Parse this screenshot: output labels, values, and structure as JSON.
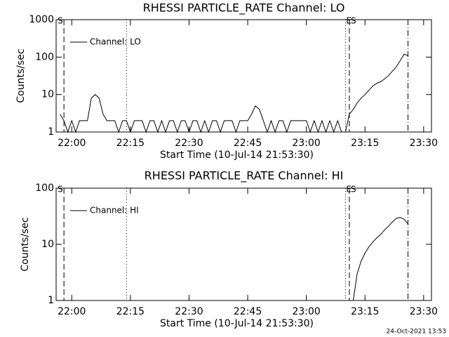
{
  "chart_data": [
    {
      "type": "line",
      "title": "RHESSI PARTICLE_RATE Channel: LO",
      "xlabel": "Start Time (10-Jul-14 21:53:30)",
      "ylabel": "Counts/sec",
      "log_y": true,
      "legend": "upper left",
      "xlim": [
        "21:56",
        "23:32"
      ],
      "xticks": [
        "22:00",
        "22:15",
        "22:30",
        "22:45",
        "23:00",
        "23:15",
        "23:30"
      ],
      "ylim": [
        1,
        1000
      ],
      "yticks": [
        1,
        10,
        100,
        1000
      ],
      "x": [
        "21:57",
        "21:58",
        "21:59",
        "22:00",
        "22:01",
        "22:02",
        "22:03",
        "22:04",
        "22:05",
        "22:06",
        "22:07",
        "22:08",
        "22:09",
        "22:10",
        "22:11",
        "22:12",
        "22:13",
        "22:14",
        "22:15",
        "22:16",
        "22:17",
        "22:18",
        "22:19",
        "22:20",
        "22:21",
        "22:22",
        "22:23",
        "22:24",
        "22:25",
        "22:26",
        "22:27",
        "22:28",
        "22:29",
        "22:30",
        "22:31",
        "22:32",
        "22:33",
        "22:34",
        "22:35",
        "22:36",
        "22:37",
        "22:38",
        "22:39",
        "22:40",
        "22:41",
        "22:42",
        "22:43",
        "22:44",
        "22:45",
        "22:46",
        "22:47",
        "22:48",
        "22:49",
        "22:50",
        "22:51",
        "22:52",
        "22:53",
        "22:54",
        "22:55",
        "22:56",
        "22:57",
        "22:58",
        "22:59",
        "23:00",
        "23:01",
        "23:02",
        "23:03",
        "23:04",
        "23:05",
        "23:06",
        "23:07",
        "23:08",
        "23:09",
        "23:10",
        "23:11",
        "23:12",
        "23:13",
        "23:14",
        "23:15",
        "23:16",
        "23:17",
        "23:18",
        "23:19",
        "23:20",
        "23:21",
        "23:22",
        "23:23",
        "23:24",
        "23:25",
        "23:26"
      ],
      "series": [
        {
          "name": "Channel: LO",
          "color": "#000000",
          "values": [
            3,
            2,
            1,
            2,
            1,
            2,
            2,
            2,
            8,
            10,
            8,
            3,
            2,
            2,
            2,
            1,
            2,
            2,
            1,
            2,
            2,
            2,
            1,
            2,
            2,
            1,
            2,
            1,
            2,
            2,
            1,
            2,
            2,
            1,
            2,
            2,
            1,
            2,
            1,
            2,
            2,
            1,
            2,
            2,
            2,
            1,
            2,
            2,
            2,
            3,
            5,
            4,
            2,
            1,
            2,
            1,
            2,
            2,
            1,
            2,
            2,
            2,
            2,
            2,
            1,
            2,
            1,
            2,
            1,
            2,
            1,
            2,
            1,
            1,
            3,
            4,
            6,
            8,
            10,
            13,
            17,
            20,
            22,
            26,
            32,
            42,
            55,
            80,
            120,
            110
          ]
        }
      ],
      "markers": [
        {
          "x": "21:58",
          "style": "dashed",
          "label": "S"
        },
        {
          "x": "22:14",
          "style": "dotted"
        },
        {
          "x": "23:10",
          "style": "dotted",
          "label": "E"
        },
        {
          "x": "23:11",
          "style": "dashed",
          "label": "S"
        },
        {
          "x": "23:26",
          "style": "dashdot"
        }
      ]
    },
    {
      "type": "line",
      "title": "RHESSI PARTICLE_RATE Channel: HI",
      "xlabel": "Start Time (10-Jul-14 21:53:30)",
      "ylabel": "Counts/sec",
      "log_y": true,
      "legend": "upper left",
      "xlim": [
        "21:56",
        "23:32"
      ],
      "xticks": [
        "22:00",
        "22:15",
        "22:30",
        "22:45",
        "23:00",
        "23:15",
        "23:30"
      ],
      "ylim": [
        1,
        100
      ],
      "yticks": [
        1,
        10,
        100
      ],
      "x": [
        "23:12",
        "23:13",
        "23:14",
        "23:15",
        "23:16",
        "23:17",
        "23:18",
        "23:19",
        "23:20",
        "23:21",
        "23:22",
        "23:23",
        "23:24",
        "23:25",
        "23:26"
      ],
      "series": [
        {
          "name": "Channel: HI",
          "color": "#000000",
          "values": [
            1,
            3,
            5,
            7,
            9,
            11,
            13,
            15,
            18,
            21,
            25,
            29,
            30,
            28,
            23
          ]
        }
      ],
      "markers": [
        {
          "x": "21:58",
          "style": "dashed",
          "label": "S"
        },
        {
          "x": "22:14",
          "style": "dotted"
        },
        {
          "x": "23:10",
          "style": "dotted",
          "label": "E"
        },
        {
          "x": "23:11",
          "style": "dashed",
          "label": "S"
        },
        {
          "x": "23:26",
          "style": "dashdot"
        }
      ]
    }
  ],
  "footer": "24-Oct-2021 13:53"
}
